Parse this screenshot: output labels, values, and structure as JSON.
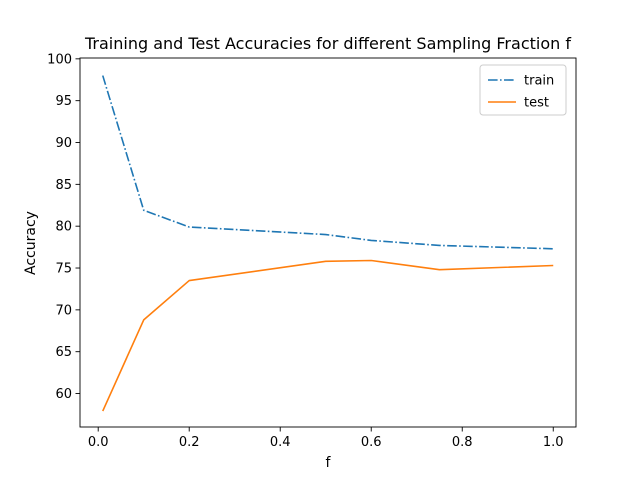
{
  "chart_data": {
    "type": "line",
    "title": "Training and Test Accuracies for different Sampling Fraction f",
    "xlabel": "f",
    "ylabel": "Accuracy",
    "xlim": [
      -0.04,
      1.05
    ],
    "ylim": [
      56,
      100.1
    ],
    "x_ticks": [
      0.0,
      0.2,
      0.4,
      0.6,
      0.8,
      1.0
    ],
    "x_tick_labels": [
      "0.0",
      "0.2",
      "0.4",
      "0.6",
      "0.8",
      "1.0"
    ],
    "y_ticks": [
      60,
      65,
      70,
      75,
      80,
      85,
      90,
      95,
      100
    ],
    "y_tick_labels": [
      "60",
      "65",
      "70",
      "75",
      "80",
      "85",
      "90",
      "95",
      "100"
    ],
    "grid": false,
    "legend_position": "top-right",
    "x": [
      0.01,
      0.1,
      0.2,
      0.5,
      0.6,
      0.75,
      1.0
    ],
    "series": [
      {
        "name": "train",
        "values": [
          98.0,
          81.9,
          79.9,
          79.0,
          78.3,
          77.7,
          77.3
        ],
        "color": "#1f77b4",
        "style": "dashdot"
      },
      {
        "name": "test",
        "values": [
          57.9,
          68.8,
          73.5,
          75.8,
          75.9,
          74.8,
          75.3
        ],
        "color": "#ff7f0e",
        "style": "solid"
      }
    ]
  }
}
